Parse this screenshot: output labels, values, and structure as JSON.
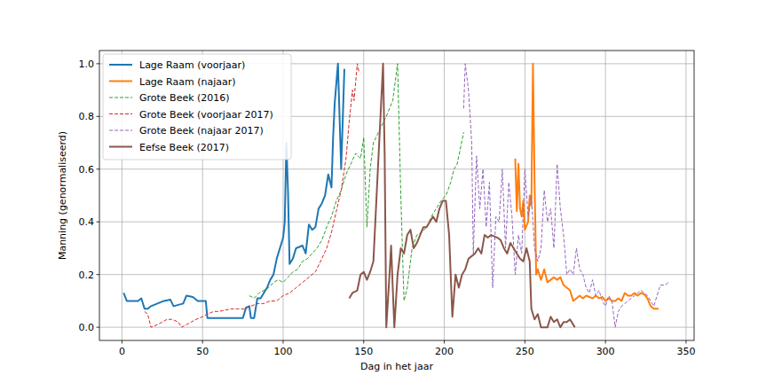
{
  "chart_data": {
    "type": "line",
    "x_label": "Dag in het jaar",
    "y_label": "Manning (genormaliseerd)",
    "xlim": [
      -14,
      355
    ],
    "ylim": [
      -0.05,
      1.05
    ],
    "xticks": [
      0,
      50,
      100,
      150,
      200,
      250,
      300,
      350
    ],
    "yticks": [
      {
        "value": 0,
        "label": "0.0"
      },
      {
        "value": 0.2,
        "label": "0.2"
      },
      {
        "value": 0.4,
        "label": "0.4"
      },
      {
        "value": 0.6,
        "label": "0.6"
      },
      {
        "value": 0.8,
        "label": "0.8"
      },
      {
        "value": 1,
        "label": "1.0"
      }
    ],
    "grid": true,
    "legend": "upper-left",
    "series": [
      {
        "name": "Lage Raam (voorjaar)",
        "color": "#1f77b4",
        "line_style": "solid",
        "x": [
          1,
          3,
          7,
          10,
          12,
          14,
          16,
          18,
          22,
          26,
          30,
          32,
          35,
          38,
          40,
          44,
          47,
          50,
          52,
          53,
          60,
          70,
          75,
          77,
          79,
          80,
          82,
          84,
          86,
          88,
          90,
          92,
          94,
          96,
          98,
          100,
          101,
          102,
          103,
          104,
          106,
          108,
          112,
          114,
          116,
          118,
          120,
          122,
          124,
          126,
          128,
          130,
          131,
          132,
          134,
          136,
          138
        ],
        "values": [
          0.13,
          0.1,
          0.1,
          0.1,
          0.11,
          0.07,
          0.07,
          0.08,
          0.09,
          0.1,
          0.105,
          0.08,
          0.085,
          0.09,
          0.12,
          0.115,
          0.1,
          0.1,
          0.1,
          0.035,
          0.035,
          0.035,
          0.035,
          0.075,
          0.08,
          0.035,
          0.035,
          0.11,
          0.11,
          0.13,
          0.15,
          0.18,
          0.2,
          0.26,
          0.3,
          0.34,
          0.4,
          0.7,
          0.52,
          0.24,
          0.26,
          0.3,
          0.31,
          0.28,
          0.39,
          0.37,
          0.38,
          0.45,
          0.47,
          0.5,
          0.58,
          0.53,
          0.72,
          0.85,
          1.0,
          0.6,
          0.98
        ]
      },
      {
        "name": "Lage Raam (najaar)",
        "color": "#ff7f0e",
        "line_style": "solid",
        "x": [
          244,
          245,
          246,
          247,
          248,
          249,
          250,
          252,
          253,
          254,
          255,
          256,
          257,
          258,
          260,
          262,
          264,
          266,
          268,
          270,
          272,
          274,
          276,
          278,
          280,
          282,
          284,
          286,
          288,
          290,
          292,
          294,
          296,
          298,
          300,
          302,
          304,
          306,
          308,
          310,
          312,
          314,
          316,
          318,
          320,
          322,
          324,
          326,
          328,
          330,
          333
        ],
        "values": [
          0.64,
          0.44,
          0.62,
          0.45,
          0.42,
          0.48,
          0.37,
          0.4,
          0.5,
          0.46,
          1.0,
          0.56,
          0.2,
          0.22,
          0.18,
          0.22,
          0.17,
          0.18,
          0.19,
          0.18,
          0.19,
          0.16,
          0.15,
          0.14,
          0.1,
          0.11,
          0.12,
          0.11,
          0.12,
          0.115,
          0.11,
          0.12,
          0.11,
          0.115,
          0.1,
          0.11,
          0.1,
          0.1,
          0.11,
          0.1,
          0.13,
          0.12,
          0.12,
          0.13,
          0.12,
          0.13,
          0.125,
          0.11,
          0.08,
          0.07,
          0.07
        ]
      },
      {
        "name": "Grote Beek (2016)",
        "color": "#2ca02c",
        "line_style": "dashed",
        "x": [
          79,
          82,
          85,
          88,
          91,
          94,
          97,
          100,
          103,
          106,
          109,
          112,
          115,
          118,
          121,
          124,
          127,
          130,
          133,
          136,
          139,
          142,
          145,
          148,
          150,
          152,
          154,
          156,
          160,
          164,
          168,
          171,
          173,
          175,
          177,
          180,
          183,
          186,
          189,
          192,
          195,
          198,
          201,
          204,
          206,
          208,
          210,
          212
        ],
        "values": [
          0.12,
          0.11,
          0.13,
          0.14,
          0.15,
          0.17,
          0.18,
          0.17,
          0.19,
          0.21,
          0.22,
          0.25,
          0.26,
          0.28,
          0.3,
          0.33,
          0.38,
          0.42,
          0.48,
          0.52,
          0.58,
          0.62,
          0.66,
          0.64,
          0.72,
          0.38,
          0.6,
          0.7,
          0.75,
          0.8,
          0.86,
          1.0,
          0.5,
          0.1,
          0.15,
          0.3,
          0.35,
          0.36,
          0.38,
          0.42,
          0.45,
          0.48,
          0.5,
          0.55,
          0.6,
          0.62,
          0.68,
          0.74
        ]
      },
      {
        "name": "Grote Beek (voorjaar 2017)",
        "color": "#d62728",
        "line_style": "dashed",
        "x": [
          14,
          16,
          18,
          22,
          25,
          28,
          31,
          35,
          37,
          40,
          43,
          46,
          50,
          53,
          57,
          60,
          64,
          68,
          72,
          76,
          80,
          84,
          88,
          92,
          96,
          100,
          104,
          108,
          112,
          116,
          120,
          124,
          127,
          130,
          133,
          136,
          139,
          141,
          143,
          144,
          146,
          147
        ],
        "values": [
          0.06,
          0.05,
          0.0,
          0.01,
          0.02,
          0.03,
          0.03,
          0.02,
          0.0,
          0.01,
          0.02,
          0.03,
          0.04,
          0.05,
          0.06,
          0.06,
          0.065,
          0.07,
          0.07,
          0.07,
          0.08,
          0.09,
          0.09,
          0.1,
          0.1,
          0.12,
          0.13,
          0.15,
          0.17,
          0.19,
          0.21,
          0.26,
          0.3,
          0.36,
          0.44,
          0.52,
          0.64,
          0.78,
          0.9,
          0.86,
          1.0,
          0.97
        ]
      },
      {
        "name": "Grote Beek (najaar 2017)",
        "color": "#9467bd",
        "line_style": "dashed",
        "x": [
          212,
          213,
          215,
          217,
          218,
          220,
          222,
          224,
          226,
          228,
          230,
          232,
          234,
          236,
          238,
          240,
          242,
          244,
          246,
          248,
          250,
          252,
          254,
          256,
          258,
          260,
          262,
          264,
          266,
          268,
          270,
          272,
          274,
          276,
          278,
          280,
          282,
          284,
          286,
          288,
          290,
          292,
          294,
          296,
          298,
          300,
          302,
          304,
          306,
          308,
          310,
          314,
          318,
          322,
          326,
          330,
          334,
          337,
          339
        ],
        "values": [
          0.83,
          1.0,
          0.9,
          0.7,
          0.28,
          0.65,
          0.45,
          0.6,
          0.38,
          0.55,
          0.15,
          0.42,
          0.4,
          0.6,
          0.3,
          0.55,
          0.42,
          0.2,
          0.35,
          0.28,
          0.6,
          0.42,
          0.5,
          0.3,
          0.25,
          0.3,
          0.52,
          0.4,
          0.45,
          0.3,
          0.62,
          0.45,
          0.35,
          0.2,
          0.22,
          0.2,
          0.3,
          0.22,
          0.2,
          0.15,
          0.13,
          0.18,
          0.12,
          0.14,
          0.1,
          0.08,
          0.12,
          0.1,
          0.0,
          0.06,
          0.08,
          0.1,
          0.12,
          0.14,
          0.12,
          0.08,
          0.16,
          0.16,
          0.17
        ]
      },
      {
        "name": "Eefse Beek (2017)",
        "color": "#8c564b",
        "line_style": "solid",
        "x": [
          141,
          143,
          146,
          148,
          150,
          152,
          154,
          156,
          158,
          160,
          162,
          163,
          164,
          166,
          167,
          168,
          169,
          171,
          173,
          175,
          177,
          179,
          181,
          183,
          185,
          187,
          189,
          191,
          193,
          195,
          197,
          199,
          201,
          203,
          205,
          207,
          209,
          211,
          213,
          215,
          217,
          219,
          221,
          223,
          225,
          227,
          229,
          233,
          235,
          237,
          239,
          241,
          243,
          245,
          247,
          249,
          251,
          253,
          254,
          256,
          258,
          260,
          264,
          266,
          268,
          270,
          272,
          274,
          276,
          278,
          281
        ],
        "values": [
          0.11,
          0.13,
          0.14,
          0.2,
          0.21,
          0.18,
          0.21,
          0.25,
          0.5,
          0.75,
          1.0,
          0.65,
          0.0,
          0.2,
          0.31,
          0.15,
          0.0,
          0.2,
          0.3,
          0.28,
          0.35,
          0.37,
          0.3,
          0.32,
          0.35,
          0.38,
          0.38,
          0.4,
          0.42,
          0.4,
          0.45,
          0.48,
          0.48,
          0.35,
          0.04,
          0.2,
          0.15,
          0.2,
          0.22,
          0.26,
          0.27,
          0.28,
          0.3,
          0.28,
          0.35,
          0.34,
          0.35,
          0.34,
          0.33,
          0.3,
          0.28,
          0.32,
          0.3,
          0.28,
          0.26,
          0.25,
          0.3,
          0.25,
          0.07,
          0.03,
          0.05,
          0.0,
          0.0,
          0.04,
          0.02,
          0.03,
          0.0,
          0.02,
          0.02,
          0.03,
          0.0
        ]
      }
    ]
  }
}
